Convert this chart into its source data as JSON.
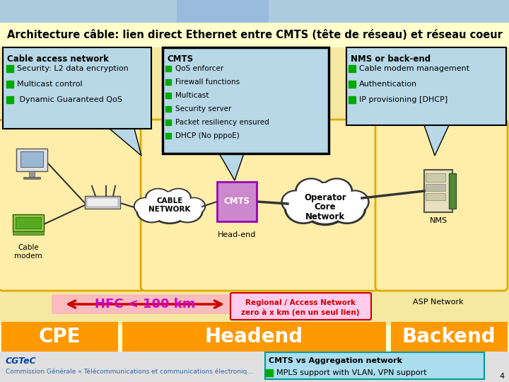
{
  "title": "Architecture câble: lien direct Ethernet entre CMTS (tête de réseau) et réseau coeur",
  "title_bg": "#ffffcc",
  "main_bg": "#f5e8a0",
  "panel_bg": "#ffeeaa",
  "panel_edge": "#ddaa00",
  "box_blue": "#b8d8e8",
  "box_blue_edge": "#000000",
  "cmts_purple": "#cc88cc",
  "cmts_purple_edge": "#9900bb",
  "orange_bar": "#ff9900",
  "white": "#ffffff",
  "black": "#000000",
  "red_arrow": "#cc0000",
  "green_bullet": "#00aa00",
  "pink_hfc_bg": "#ffaacc",
  "regional_bg": "#ffccee",
  "footer_bg": "#e8e8e8",
  "agg_bg": "#aaddee",
  "agg_edge": "#009999",
  "cable_access_title": "Cable access network",
  "cable_access_items": [
    "Security: L2 data encryption",
    "Multicast control",
    " Dynamic Guaranteed QoS"
  ],
  "cmts_title": "CMTS",
  "cmts_items": [
    "QoS enforcer",
    "Firewall functions",
    "Multicast",
    "Security server",
    "Packet resiliency ensured",
    "DHCP (No pppoE)"
  ],
  "nms_title": "NMS or back-end",
  "nms_items": [
    "Cable modem management",
    "Authentication",
    "IP provisioning [DHCP]"
  ],
  "hfc_label": "HFC < 100 km",
  "regional_line1": "Regional / Access Network",
  "regional_line2": "zero à x km (en un seul lien)",
  "asp_label": "ASP Network",
  "cpe_label": "CPE",
  "headend_label": "Headend",
  "backend_label": "Backend",
  "cmts_box_label": "CMTS",
  "cable_network_label": "CABLE\nNETWORK",
  "head_end_label": "Head-end",
  "operator_line1": "Operator",
  "operator_line2": "Core",
  "operator_line3": "Network",
  "nms_device_label": "NMS",
  "cgtec_label": "CGTeC",
  "cgtec_sub": "Commission Générale « Télécommunications et communications électroniq...",
  "cmts_agg_title": "CMTS vs Aggregation network",
  "cmts_agg_item": "MPLS support with VLAN, VPN support",
  "slide_num": "4",
  "title_top_photo_color": "#99bbdd"
}
